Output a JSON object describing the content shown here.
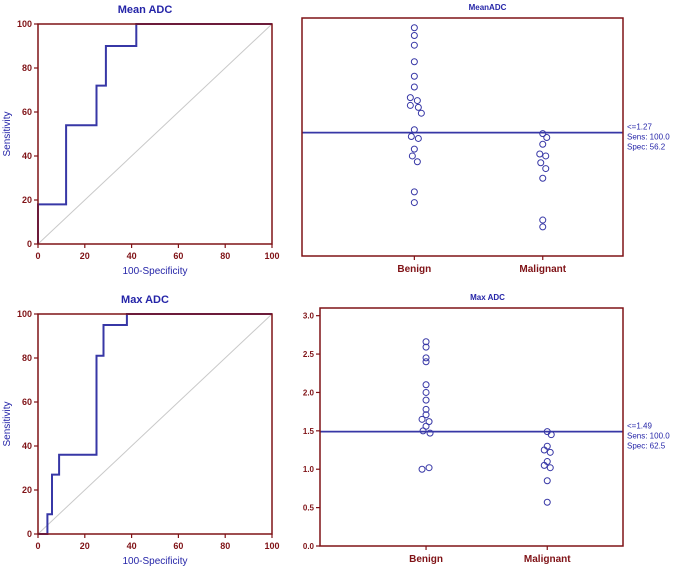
{
  "colors": {
    "background": "#ffffff",
    "panel_border": "#7f1216",
    "tick_label": "#7f1216",
    "category_label": "#7f1216",
    "axis_title": "#2525a8",
    "title": "#2525a8",
    "curve": "#3737a6",
    "reference": "#c9c9c9",
    "marker": "#3737a6",
    "cutoff": "#3737a6",
    "annotation": "#2525a8"
  },
  "chart_data": [
    {
      "id": "roc-mean-adc",
      "type": "line",
      "title": "Mean ADC",
      "xlabel": "100-Specificity",
      "ylabel": "Sensitivity",
      "xlim": [
        0,
        100
      ],
      "ylim": [
        0,
        100
      ],
      "xticks": [
        0,
        20,
        40,
        60,
        80,
        100
      ],
      "yticks": [
        0,
        20,
        40,
        60,
        80,
        100
      ],
      "series": [
        {
          "name": "ROC curve",
          "points": [
            [
              0,
              0
            ],
            [
              0,
              18
            ],
            [
              12,
              18
            ],
            [
              12,
              54
            ],
            [
              25,
              54
            ],
            [
              25,
              72
            ],
            [
              29,
              72
            ],
            [
              29,
              90
            ],
            [
              42,
              90
            ],
            [
              42,
              100
            ],
            [
              100,
              100
            ]
          ]
        },
        {
          "name": "reference diagonal",
          "points": [
            [
              0,
              0
            ],
            [
              100,
              100
            ]
          ]
        }
      ]
    },
    {
      "id": "dot-mean-adc",
      "type": "scatter",
      "title": "MeanADC",
      "categories": [
        "Benign",
        "Malignant"
      ],
      "ylim": [
        0,
        2.45
      ],
      "yticks": [],
      "ytick_labels": [],
      "cutoff": {
        "value": 1.27,
        "annotation_lines": [
          "<=1.27",
          "Sens: 100.0",
          "Spec: 56.2"
        ]
      },
      "series": [
        {
          "name": "Benign",
          "points": [
            [
              0,
              2.35
            ],
            [
              0,
              2.27
            ],
            [
              0,
              2.17
            ],
            [
              0,
              2.0
            ],
            [
              0,
              1.85
            ],
            [
              0,
              1.74
            ],
            [
              -4,
              1.63
            ],
            [
              3,
              1.6
            ],
            [
              -4,
              1.55
            ],
            [
              4,
              1.53
            ],
            [
              7,
              1.47
            ],
            [
              0,
              1.3
            ],
            [
              -3,
              1.23
            ],
            [
              4,
              1.21
            ],
            [
              0,
              1.1
            ],
            [
              -2,
              1.03
            ],
            [
              3,
              0.97
            ],
            [
              0,
              0.66
            ],
            [
              0,
              0.55
            ]
          ]
        },
        {
          "name": "Malignant",
          "points": [
            [
              0,
              1.26
            ],
            [
              4,
              1.22
            ],
            [
              0,
              1.15
            ],
            [
              -3,
              1.05
            ],
            [
              3,
              1.03
            ],
            [
              -2,
              0.96
            ],
            [
              3,
              0.9
            ],
            [
              0,
              0.8
            ],
            [
              0,
              0.37
            ],
            [
              0,
              0.3
            ]
          ]
        }
      ]
    },
    {
      "id": "roc-max-adc",
      "type": "line",
      "title": "Max ADC",
      "xlabel": "100-Specificity",
      "ylabel": "Sensitivity",
      "xlim": [
        0,
        100
      ],
      "ylim": [
        0,
        100
      ],
      "xticks": [
        0,
        20,
        40,
        60,
        80,
        100
      ],
      "yticks": [
        0,
        20,
        40,
        60,
        80,
        100
      ],
      "series": [
        {
          "name": "ROC curve",
          "points": [
            [
              0,
              0
            ],
            [
              4,
              0
            ],
            [
              4,
              9
            ],
            [
              6,
              9
            ],
            [
              6,
              27
            ],
            [
              9,
              27
            ],
            [
              9,
              36
            ],
            [
              25,
              36
            ],
            [
              25,
              81
            ],
            [
              28,
              81
            ],
            [
              28,
              95
            ],
            [
              38,
              95
            ],
            [
              38,
              100
            ],
            [
              100,
              100
            ]
          ]
        },
        {
          "name": "reference diagonal",
          "points": [
            [
              0,
              0
            ],
            [
              100,
              100
            ]
          ]
        }
      ]
    },
    {
      "id": "dot-max-adc",
      "type": "scatter",
      "title": "Max ADC",
      "categories": [
        "Benign",
        "Malignant"
      ],
      "ylim": [
        0,
        3.1
      ],
      "yticks": [
        0,
        0.5,
        1,
        1.5,
        2,
        2.5,
        3
      ],
      "ytick_labels": [
        "0.0",
        "0.5",
        "1.0",
        "1.5",
        "2.0",
        "2.5",
        "3.0"
      ],
      "cutoff": {
        "value": 1.49,
        "annotation_lines": [
          "<=1.49",
          "Sens: 100.0",
          "Spec: 62.5"
        ]
      },
      "series": [
        {
          "name": "Benign",
          "points": [
            [
              0,
              2.66
            ],
            [
              0,
              2.59
            ],
            [
              0,
              2.45
            ],
            [
              0,
              2.4
            ],
            [
              0,
              2.1
            ],
            [
              0,
              2.0
            ],
            [
              0,
              1.9
            ],
            [
              0,
              1.78
            ],
            [
              0,
              1.71
            ],
            [
              -4,
              1.65
            ],
            [
              3,
              1.62
            ],
            [
              0,
              1.56
            ],
            [
              -3,
              1.5
            ],
            [
              4,
              1.47
            ],
            [
              -4,
              1.0
            ],
            [
              3,
              1.02
            ]
          ]
        },
        {
          "name": "Malignant",
          "points": [
            [
              0,
              1.49
            ],
            [
              4,
              1.45
            ],
            [
              0,
              1.3
            ],
            [
              -3,
              1.25
            ],
            [
              3,
              1.22
            ],
            [
              0,
              1.1
            ],
            [
              -3,
              1.05
            ],
            [
              3,
              1.02
            ],
            [
              0,
              0.85
            ],
            [
              0,
              0.57
            ]
          ]
        }
      ]
    }
  ]
}
